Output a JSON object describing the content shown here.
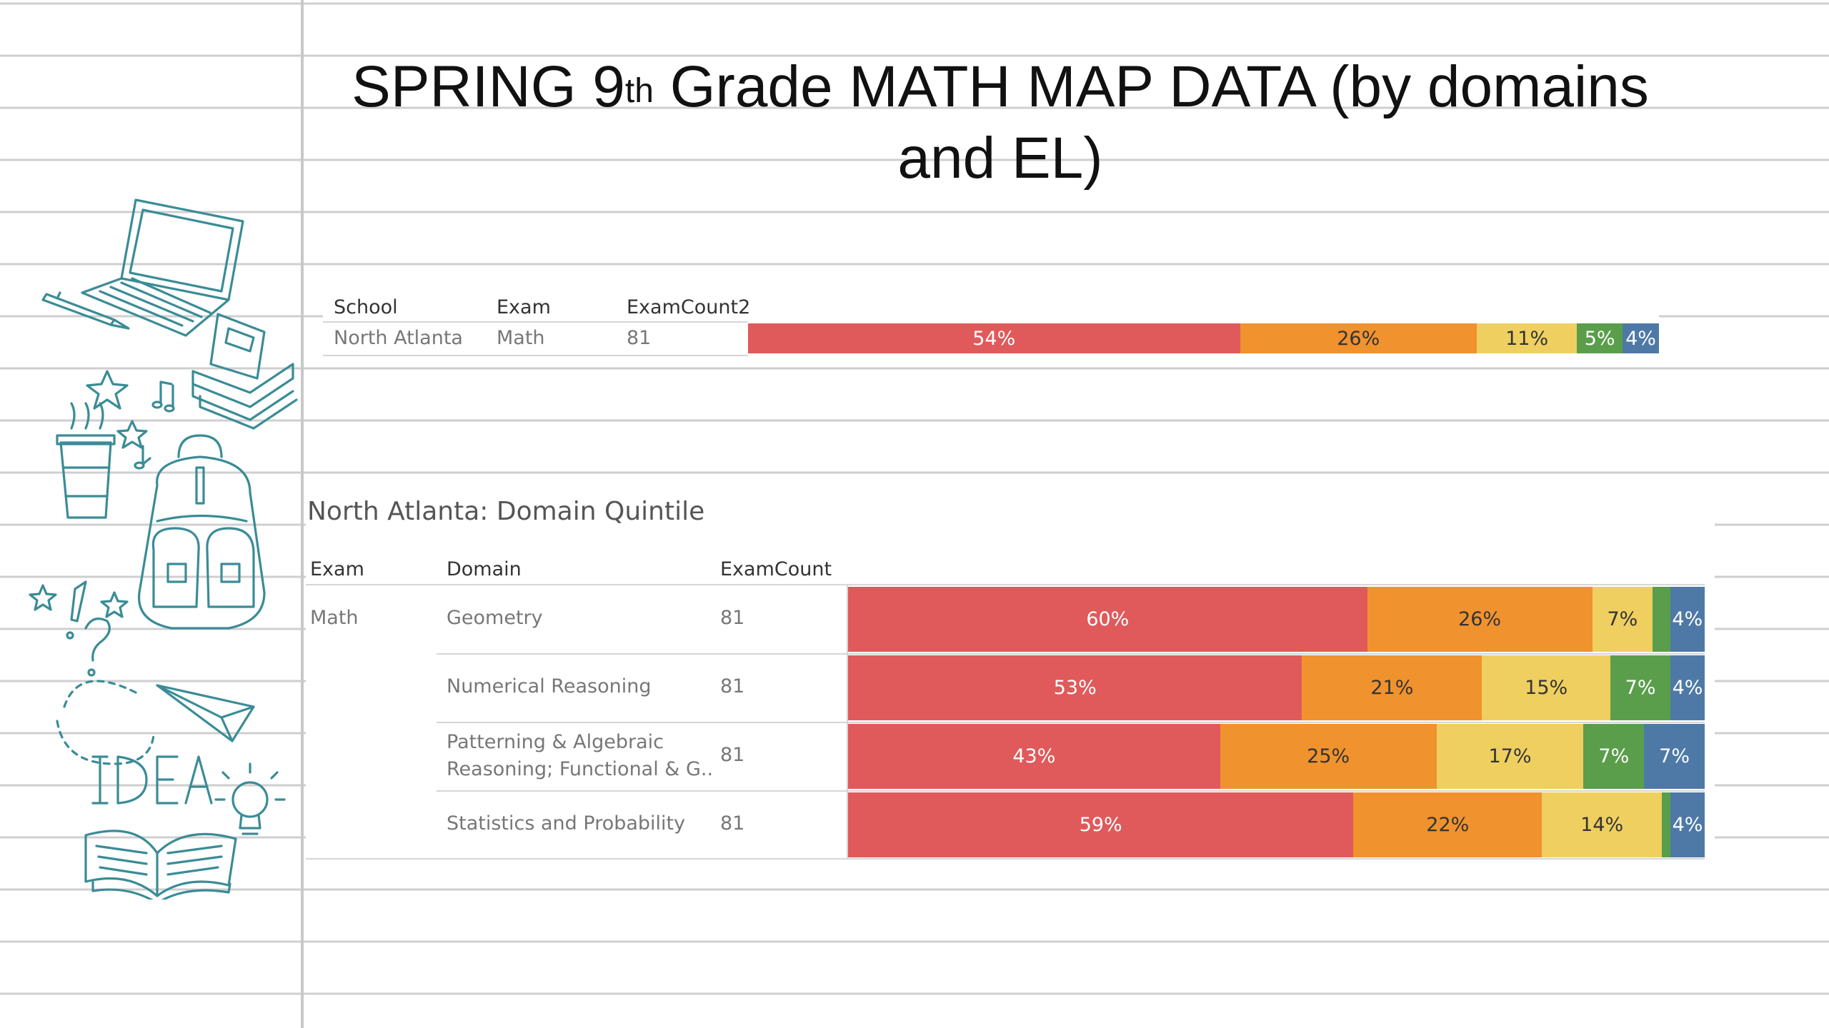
{
  "title_main": "SPRING 9",
  "title_sup": "th",
  "title_rest": " Grade MATH MAP DATA (by domains and EL)",
  "colors": {
    "q1": "#e05a5b",
    "q2": "#f0922e",
    "q3": "#efcf60",
    "q4": "#5a9e4c",
    "q5": "#4e79a7",
    "doodle": "#3a8c96"
  },
  "summary": {
    "headers": {
      "school": "School",
      "exam": "Exam",
      "count": "ExamCount2"
    },
    "row": {
      "school": "North Atlanta",
      "exam": "Math",
      "count": "81"
    }
  },
  "domain_section": {
    "title": "North Atlanta: Domain Quintile",
    "headers": {
      "exam": "Exam",
      "domain": "Domain",
      "count": "ExamCount"
    },
    "exam": "Math",
    "rows": [
      {
        "domain": "Geometry",
        "count": "81"
      },
      {
        "domain": "Numerical Reasoning",
        "count": "81"
      },
      {
        "domain_line1": "Patterning & Algebraic",
        "domain_line2": "Reasoning; Functional & G..",
        "count": "81"
      },
      {
        "domain": "Statistics and Probability",
        "count": "81"
      }
    ]
  },
  "chart_data": [
    {
      "type": "bar",
      "orientation": "horizontal-stacked-100",
      "categories": [
        "North Atlanta / Math"
      ],
      "series": [
        {
          "values": [
            54
          ],
          "labels": [
            "54%"
          ]
        },
        {
          "values": [
            26
          ],
          "labels": [
            "26%"
          ]
        },
        {
          "values": [
            11
          ],
          "labels": [
            "11%"
          ]
        },
        {
          "values": [
            5
          ],
          "labels": [
            "5%"
          ]
        },
        {
          "values": [
            4
          ],
          "labels": [
            "4%"
          ]
        }
      ]
    },
    {
      "type": "bar",
      "orientation": "horizontal-stacked-100",
      "title": "North Atlanta: Domain Quintile",
      "categories": [
        "Geometry",
        "Numerical Reasoning",
        "Patterning & Algebraic Reasoning; Functional & G..",
        "Statistics and Probability"
      ],
      "series": [
        {
          "values": [
            60,
            53,
            43,
            59
          ],
          "labels": [
            "60%",
            "53%",
            "43%",
            "59%"
          ]
        },
        {
          "values": [
            26,
            21,
            25,
            22
          ],
          "labels": [
            "26%",
            "21%",
            "25%",
            "22%"
          ]
        },
        {
          "values": [
            7,
            15,
            17,
            14
          ],
          "labels": [
            "7%",
            "15%",
            "17%",
            "14%"
          ]
        },
        {
          "values": [
            2,
            7,
            7,
            1
          ],
          "labels": [
            "",
            "7%",
            "7%",
            ""
          ]
        },
        {
          "values": [
            4,
            4,
            7,
            4
          ],
          "labels": [
            "4%",
            "4%",
            "7%",
            "4%"
          ]
        }
      ]
    }
  ]
}
